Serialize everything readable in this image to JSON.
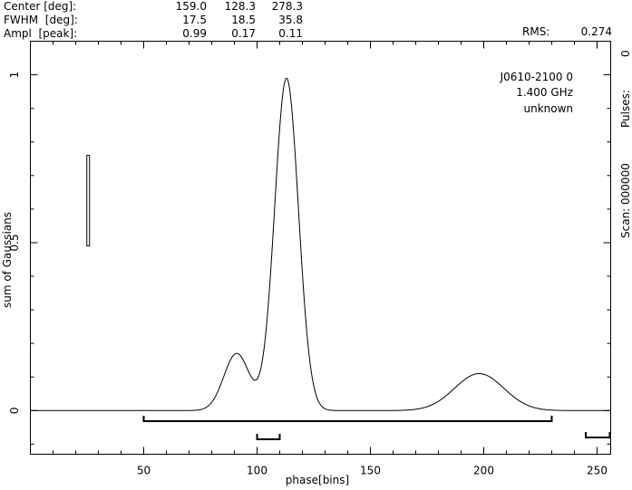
{
  "chart_data": {
    "type": "line",
    "header": {
      "rows": [
        {
          "label": "Center [deg]:",
          "values": [
            "159.0",
            "128.3",
            "278.3"
          ]
        },
        {
          "label": "FWHM  [deg]:",
          "values": [
            "17.5",
            "18.5",
            "35.8"
          ]
        },
        {
          "label": "Ampl  [peak]:",
          "values": [
            "0.99",
            "0.17",
            "0.11"
          ]
        }
      ],
      "rms_label": "RMS:",
      "rms_value": "0.274"
    },
    "info": [
      "J0610-2100 0",
      "1.400 GHz",
      "unknown"
    ],
    "right_labels": {
      "pulses": "Pulses:",
      "pulses_value": "0",
      "scan": "Scan: 000000"
    },
    "xlabel": "phase[bins]",
    "ylabel": "sum of Gaussians",
    "xlim": [
      0,
      256
    ],
    "ylim": [
      -0.13,
      1.1
    ],
    "x_ticks": [
      50,
      100,
      150,
      200,
      250
    ],
    "x_tick_labels": [
      "50",
      "100",
      "150",
      "200",
      "250"
    ],
    "y_ticks": [
      0,
      0.5,
      1
    ],
    "y_tick_labels": [
      "0",
      "0.5",
      "1"
    ],
    "gaussians": [
      {
        "center_bin": 113,
        "fwhm_bins": 12.4,
        "amplitude": 0.99
      },
      {
        "center_bin": 91,
        "fwhm_bins": 13.2,
        "amplitude": 0.17
      },
      {
        "center_bin": 198,
        "fwhm_bins": 25.5,
        "amplitude": 0.11
      }
    ],
    "error_bar": {
      "x": 25.5,
      "y_low": 0.49,
      "y_high": 0.76
    },
    "windows": [
      {
        "x_start": 50,
        "x_end": 230
      },
      {
        "x_start": 100,
        "x_end": 110
      },
      {
        "x_start": 245,
        "x_end": 256
      }
    ]
  }
}
